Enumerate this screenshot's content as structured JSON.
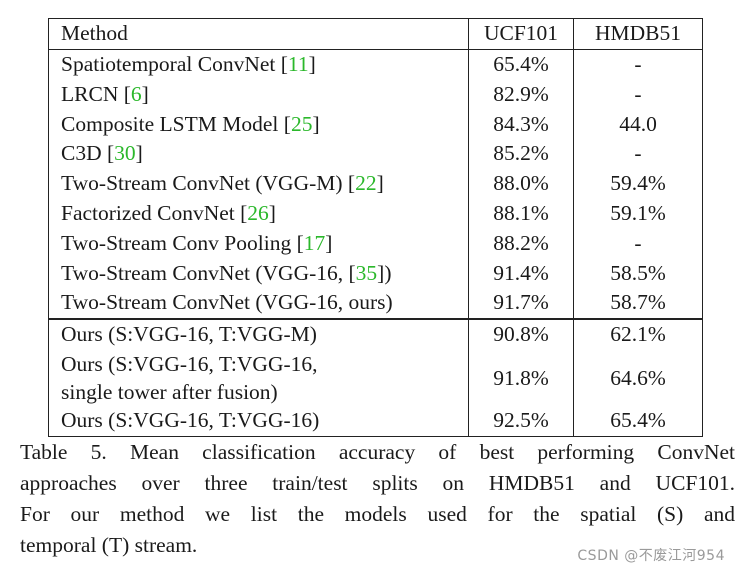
{
  "table": {
    "headers": {
      "method": "Method",
      "ucf": "UCF101",
      "hmdb": "HMDB51"
    },
    "rows": [
      {
        "method": "Spatiotemporal ConvNet",
        "ref": "11",
        "ucf": "65.4%",
        "hmdb": "-"
      },
      {
        "method": "LRCN",
        "ref": "6",
        "ucf": "82.9%",
        "hmdb": "-"
      },
      {
        "method": "Composite LSTM Model",
        "ref": "25",
        "ucf": "84.3%",
        "hmdb": "44.0"
      },
      {
        "method": "C3D",
        "ref": "30",
        "ucf": "85.2%",
        "hmdb": "-"
      },
      {
        "method": "Two-Stream ConvNet (VGG-M)",
        "ref": "22",
        "ucf": "88.0%",
        "hmdb": "59.4%"
      },
      {
        "method": "Factorized ConvNet",
        "ref": "26",
        "ucf": "88.1%",
        "hmdb": "59.1%"
      },
      {
        "method": "Two-Stream Conv Pooling",
        "ref": "17",
        "ucf": "88.2%",
        "hmdb": "-"
      },
      {
        "method_pre": "Two-Stream ConvNet (VGG-16, ",
        "ref": "35",
        "method_post": ")",
        "ucf": "91.4%",
        "hmdb": "58.5%"
      },
      {
        "method": "Two-Stream ConvNet (VGG-16, ours)",
        "ucf": "91.7%",
        "hmdb": "58.7%"
      }
    ],
    "ours": [
      {
        "method": "Ours (S:VGG-16, T:VGG-M)",
        "ucf": "90.8%",
        "hmdb": "62.1%"
      },
      {
        "method_line1": "Ours (S:VGG-16, T:VGG-16,",
        "method_line2": "single tower after fusion)",
        "ucf": "91.8%",
        "hmdb": "64.6%"
      },
      {
        "method": "Ours (S:VGG-16, T:VGG-16)",
        "ucf": "92.5%",
        "hmdb": "65.4%"
      }
    ]
  },
  "caption": {
    "line1": "Table 5. Mean classification accuracy of best performing ConvNet",
    "line2": "approaches over three train/test splits on HMDB51 and UCF101.",
    "line3": "For our method we list the models used for the spatial (S) and",
    "line4": "temporal (T) stream."
  },
  "watermark": "CSDN @不废江河954",
  "colors": {
    "citation": "#2bb82b",
    "text": "#1a1a1a"
  }
}
